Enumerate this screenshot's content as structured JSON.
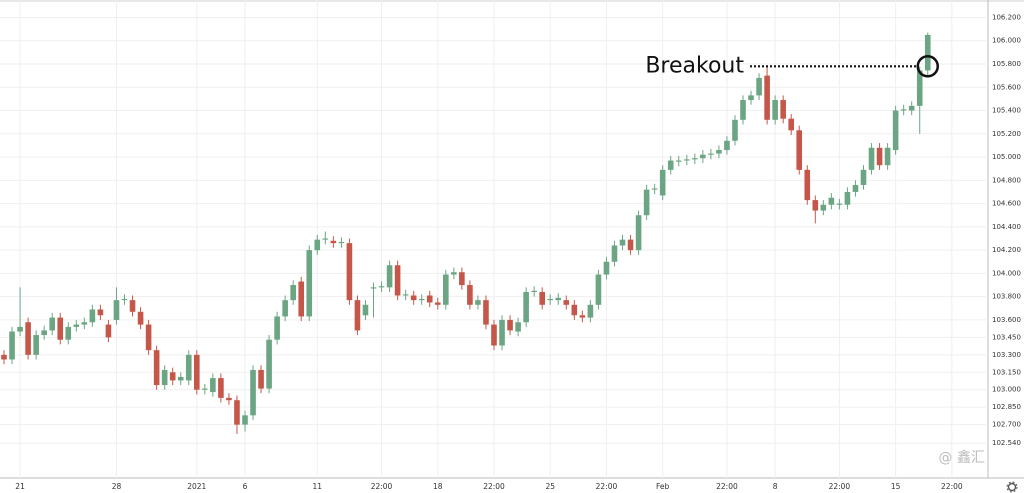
{
  "chart_data": {
    "type": "candlestick",
    "annotation": {
      "text": "Breakout",
      "value": 105.78
    },
    "watermark": "@ 鑫汇",
    "up_color": "#6ba583",
    "down_color": "#c4574a",
    "grid": true,
    "ylim": [
      102.31,
      106.35
    ],
    "yticks": [
      {
        "value": 106.2,
        "label": "106.200"
      },
      {
        "value": 106.0,
        "label": "106.000"
      },
      {
        "value": 105.8,
        "label": "105.800"
      },
      {
        "value": 105.6,
        "label": "105.600"
      },
      {
        "value": 105.4,
        "label": "105.400"
      },
      {
        "value": 105.2,
        "label": "105.200"
      },
      {
        "value": 105.0,
        "label": "105.000"
      },
      {
        "value": 104.8,
        "label": "104.800"
      },
      {
        "value": 104.6,
        "label": "104.600"
      },
      {
        "value": 104.4,
        "label": "104.400"
      },
      {
        "value": 104.2,
        "label": "104.200"
      },
      {
        "value": 104.0,
        "label": "104.000"
      },
      {
        "value": 103.8,
        "label": "103.800"
      },
      {
        "value": 103.6,
        "label": "103.600"
      },
      {
        "value": 103.45,
        "label": "103.450"
      },
      {
        "value": 103.3,
        "label": "103.300"
      },
      {
        "value": 103.15,
        "label": "103.150"
      },
      {
        "value": 103.0,
        "label": "103.000"
      },
      {
        "value": 102.85,
        "label": "102.850"
      },
      {
        "value": 102.7,
        "label": "102.700"
      },
      {
        "value": 102.54,
        "label": "102.540"
      }
    ],
    "categories": [
      null,
      null,
      "21",
      null,
      null,
      null,
      null,
      null,
      null,
      null,
      null,
      null,
      null,
      null,
      "28",
      null,
      null,
      null,
      null,
      null,
      null,
      null,
      null,
      null,
      "2021",
      null,
      null,
      null,
      null,
      null,
      "6",
      null,
      null,
      null,
      null,
      null,
      null,
      null,
      null,
      "11",
      null,
      null,
      null,
      null,
      null,
      null,
      null,
      "22:00",
      null,
      null,
      null,
      null,
      null,
      null,
      "18",
      null,
      null,
      null,
      null,
      null,
      null,
      "22:00",
      null,
      null,
      null,
      null,
      null,
      null,
      "25",
      null,
      null,
      null,
      null,
      null,
      null,
      "22:00",
      null,
      null,
      null,
      null,
      null,
      null,
      "Feb",
      null,
      null,
      null,
      null,
      null,
      null,
      null,
      "22:00",
      null,
      null,
      null,
      null,
      null,
      "8",
      null,
      null,
      null,
      null,
      null,
      null,
      null,
      "22:00",
      null,
      null,
      null,
      null,
      null,
      null,
      "15",
      null,
      null,
      null,
      null,
      null,
      null,
      "22:00",
      null,
      null,
      null,
      null
    ],
    "open": [
      103.3,
      103.26,
      103.5,
      103.58,
      103.3,
      103.47,
      103.51,
      103.62,
      103.43,
      103.54,
      103.56,
      103.58,
      103.69,
      103.56,
      103.6,
      103.77,
      103.77,
      103.67,
      103.56,
      103.34,
      103.04,
      103.15,
      103.08,
      103.08,
      103.3,
      103.0,
      102.98,
      103.1,
      102.93,
      102.91,
      102.7,
      102.78,
      103.17,
      103.01,
      103.43,
      103.63,
      103.77,
      103.93,
      103.63,
      104.2,
      104.29,
      104.28,
      104.26,
      104.26,
      103.77,
      103.64,
      103.87,
      103.88,
      103.88,
      104.07,
      103.81,
      103.81,
      103.77,
      103.81,
      103.75,
      103.73,
      103.99,
      104.01,
      103.9,
      103.73,
      103.77,
      103.56,
      103.38,
      103.6,
      103.5,
      103.58,
      103.84,
      103.84,
      103.77,
      103.77,
      103.77,
      103.73,
      103.64,
      103.62,
      103.73,
      103.99,
      104.1,
      104.24,
      104.29,
      104.2,
      104.5,
      104.72,
      104.67,
      104.89,
      104.96,
      104.97,
      104.98,
      104.99,
      105.02,
      105.03,
      105.06,
      105.14,
      105.32,
      105.49,
      105.53,
      105.7,
      105.32,
      105.49,
      105.33,
      105.23,
      104.89,
      104.63,
      104.54,
      104.59,
      104.59,
      104.59,
      104.7,
      104.76,
      104.89,
      105.08,
      104.93,
      105.06,
      105.4,
      105.4,
      105.44,
      105.745,
      null,
      null,
      null,
      null,
      null,
      null,
      null
    ],
    "high": [
      103.34,
      103.54,
      103.88,
      103.62,
      103.51,
      103.55,
      103.66,
      103.66,
      103.58,
      103.6,
      103.62,
      103.73,
      103.73,
      103.6,
      103.88,
      103.82,
      103.81,
      103.71,
      103.6,
      103.38,
      103.21,
      103.19,
      103.15,
      103.34,
      103.34,
      103.05,
      103.14,
      103.14,
      102.97,
      102.95,
      102.82,
      103.21,
      103.21,
      103.47,
      103.67,
      103.81,
      103.94,
      103.97,
      104.24,
      104.33,
      104.36,
      104.32,
      104.31,
      104.3,
      103.81,
      103.77,
      103.92,
      103.93,
      104.11,
      104.11,
      103.86,
      103.85,
      103.82,
      103.85,
      103.79,
      104.03,
      104.05,
      104.05,
      103.94,
      103.81,
      103.81,
      103.6,
      103.64,
      103.64,
      103.62,
      103.88,
      103.89,
      103.88,
      103.82,
      103.83,
      103.81,
      103.77,
      103.68,
      103.77,
      104.03,
      104.14,
      104.28,
      104.33,
      104.33,
      104.54,
      104.76,
      104.77,
      104.93,
      105.01,
      105.01,
      105.02,
      105.03,
      105.06,
      105.07,
      105.1,
      105.18,
      105.36,
      105.53,
      105.57,
      105.72,
      105.78,
      105.53,
      105.53,
      105.37,
      105.27,
      104.93,
      104.67,
      104.63,
      104.69,
      104.64,
      104.74,
      104.8,
      104.93,
      105.12,
      105.12,
      105.12,
      105.44,
      105.45,
      105.48,
      105.78,
      106.07,
      null,
      null,
      null,
      null,
      null,
      null,
      null
    ],
    "low": [
      103.22,
      103.22,
      103.46,
      103.26,
      103.26,
      103.43,
      103.47,
      103.39,
      103.39,
      103.5,
      103.52,
      103.54,
      103.6,
      103.41,
      103.56,
      103.73,
      103.63,
      103.52,
      103.3,
      103.0,
      103.0,
      103.04,
      103.04,
      103.04,
      102.96,
      102.96,
      102.94,
      102.89,
      102.87,
      102.62,
      102.64,
      102.74,
      102.97,
      102.97,
      103.39,
      103.59,
      103.73,
      103.59,
      103.59,
      104.16,
      104.25,
      104.22,
      104.22,
      103.73,
      103.47,
      103.6,
      103.62,
      103.84,
      103.84,
      103.77,
      103.77,
      103.73,
      103.73,
      103.71,
      103.69,
      103.69,
      103.95,
      103.86,
      103.69,
      103.69,
      103.52,
      103.34,
      103.34,
      103.47,
      103.46,
      103.54,
      103.8,
      103.69,
      103.73,
      103.73,
      103.69,
      103.6,
      103.58,
      103.58,
      103.69,
      103.95,
      104.06,
      104.2,
      104.16,
      104.16,
      104.46,
      104.68,
      104.63,
      104.85,
      104.92,
      104.93,
      104.94,
      104.95,
      104.98,
      104.99,
      105.02,
      105.1,
      105.28,
      105.45,
      105.49,
      105.28,
      105.28,
      105.29,
      105.19,
      104.85,
      104.59,
      104.43,
      104.5,
      104.55,
      104.55,
      104.55,
      104.66,
      104.72,
      104.85,
      104.89,
      104.89,
      105.02,
      105.36,
      105.36,
      105.2,
      105.7,
      null,
      null,
      null,
      null,
      null,
      null,
      null
    ],
    "close": [
      103.26,
      103.5,
      103.54,
      103.3,
      103.47,
      103.51,
      103.62,
      103.43,
      103.54,
      103.56,
      103.58,
      103.69,
      103.64,
      103.45,
      103.77,
      103.78,
      103.67,
      103.56,
      103.34,
      103.04,
      103.17,
      103.08,
      103.11,
      103.3,
      103.0,
      103.01,
      103.1,
      102.93,
      102.91,
      102.7,
      102.78,
      103.17,
      103.01,
      103.43,
      103.63,
      103.77,
      103.9,
      103.63,
      104.2,
      104.29,
      104.3,
      104.26,
      104.27,
      103.77,
      103.51,
      103.73,
      103.88,
      103.89,
      104.07,
      103.81,
      103.82,
      103.77,
      103.78,
      103.75,
      103.73,
      103.99,
      104.01,
      103.9,
      103.73,
      103.77,
      103.56,
      103.38,
      103.6,
      103.51,
      103.58,
      103.84,
      103.85,
      103.73,
      103.78,
      103.79,
      103.73,
      103.64,
      103.62,
      103.73,
      103.99,
      104.1,
      104.24,
      104.29,
      104.2,
      104.5,
      104.72,
      104.73,
      104.89,
      104.97,
      104.97,
      104.98,
      104.99,
      105.02,
      105.03,
      105.06,
      105.14,
      105.32,
      105.49,
      105.53,
      105.68,
      105.32,
      105.49,
      105.33,
      105.23,
      104.89,
      104.63,
      104.54,
      104.59,
      104.65,
      104.6,
      104.7,
      104.76,
      104.89,
      105.08,
      104.93,
      105.08,
      105.4,
      105.41,
      105.44,
      105.745,
      106.05,
      null,
      null,
      null,
      null,
      null,
      null,
      null
    ]
  }
}
